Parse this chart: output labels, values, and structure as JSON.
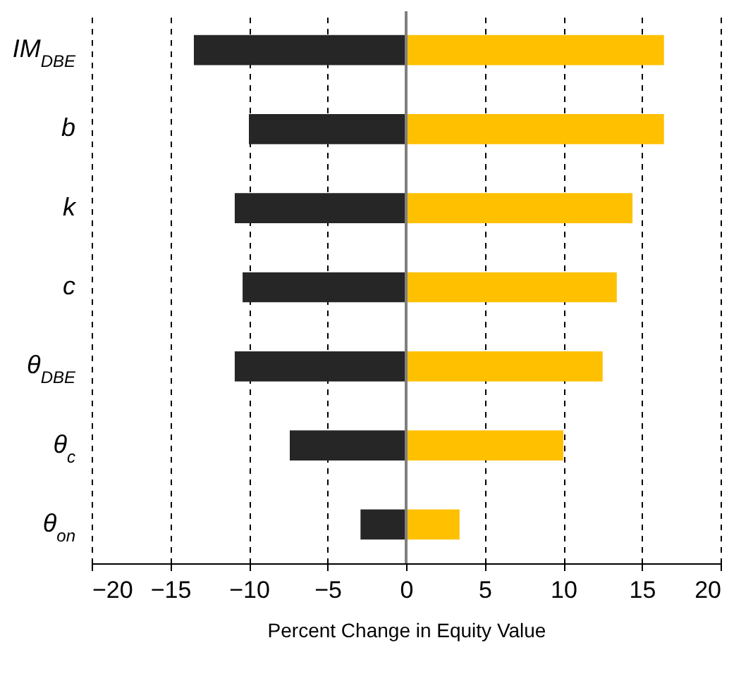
{
  "chart_data": {
    "type": "bar",
    "orientation": "horizontal",
    "xlabel": "Percent Change in Equity Value",
    "categories": [
      "IM$_{DBE}$",
      "b",
      "k",
      "c",
      "θ$_{DBE}$",
      "θ$_{c}$",
      "θ$_{on}$"
    ],
    "series": [
      {
        "color": "#262626",
        "values": [
          -13.5,
          -10,
          -10.9,
          -10.4,
          -10.9,
          -7.4,
          -2.9
        ]
      },
      {
        "color": "#ffc000",
        "values": [
          16.4,
          16.4,
          14.4,
          13.4,
          12.5,
          10,
          3.4
        ]
      }
    ],
    "stacked": true,
    "xlim": [
      -20,
      20
    ],
    "xticks": [
      -20,
      -15,
      -10,
      -5,
      0,
      5,
      10,
      15,
      20
    ],
    "grid": "x",
    "ref_lines": [
      {
        "axis": "x",
        "value": 0,
        "color": "#808080"
      }
    ]
  }
}
